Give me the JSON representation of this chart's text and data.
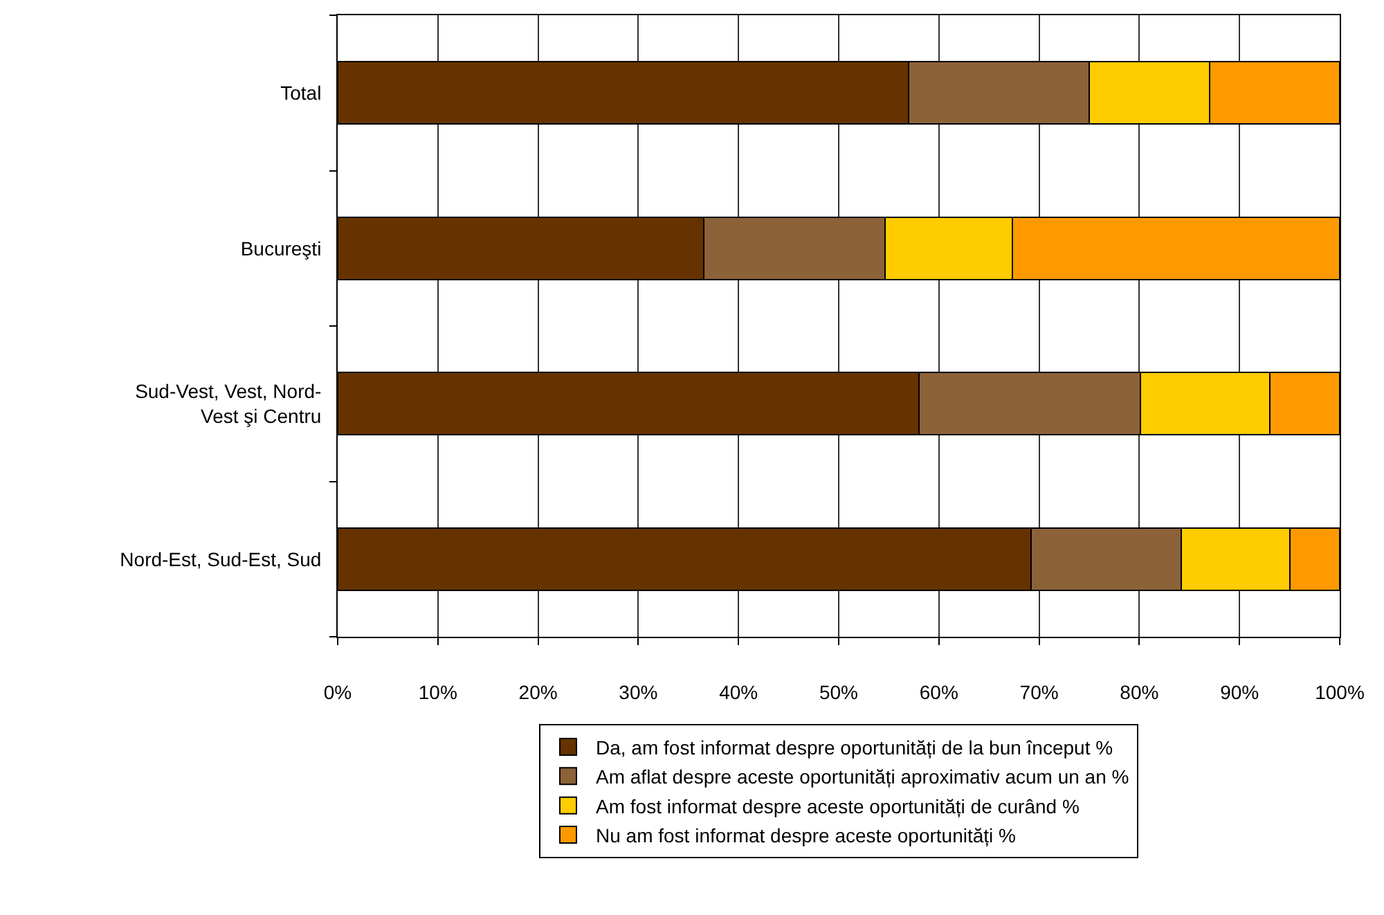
{
  "chart_data": {
    "type": "bar",
    "orientation": "horizontal",
    "stacked": true,
    "categories": [
      "Total",
      "Bucureşti",
      "Sud-Vest, Vest, Nord-Vest şi Centru",
      "Nord-Est, Sud-Est, Sud"
    ],
    "series": [
      {
        "name": "Da, am fost informat despre oportunități de la bun început %",
        "color": "#663300",
        "values": [
          57.0,
          36.5,
          58.0,
          69.2
        ]
      },
      {
        "name": "Am aflat despre aceste oportunități aproximativ acum un an %",
        "color": "#8c6239",
        "values": [
          18.0,
          18.1,
          22.1,
          15.0
        ]
      },
      {
        "name": "Am fost informat despre aceste oportunități de curând %",
        "color": "#ffcc00",
        "values": [
          12.0,
          12.7,
          12.9,
          10.8
        ]
      },
      {
        "name": "Nu am fost informat despre aceste oportunități %",
        "color": "#ff9900",
        "values": [
          13.0,
          32.7,
          7.0,
          5.0
        ]
      }
    ],
    "xlim": [
      0,
      100
    ],
    "xticks": [
      {
        "value": 0,
        "label": "0%"
      },
      {
        "value": 10,
        "label": "10%"
      },
      {
        "value": 20,
        "label": "20%"
      },
      {
        "value": 30,
        "label": "30%"
      },
      {
        "value": 40,
        "label": "40%"
      },
      {
        "value": 50,
        "label": "50%"
      },
      {
        "value": 60,
        "label": "60%"
      },
      {
        "value": 70,
        "label": "70%"
      },
      {
        "value": 80,
        "label": "80%"
      },
      {
        "value": 90,
        "label": "90%"
      },
      {
        "value": 100,
        "label": "100%"
      }
    ],
    "grid": "x",
    "legend": "bottom"
  }
}
